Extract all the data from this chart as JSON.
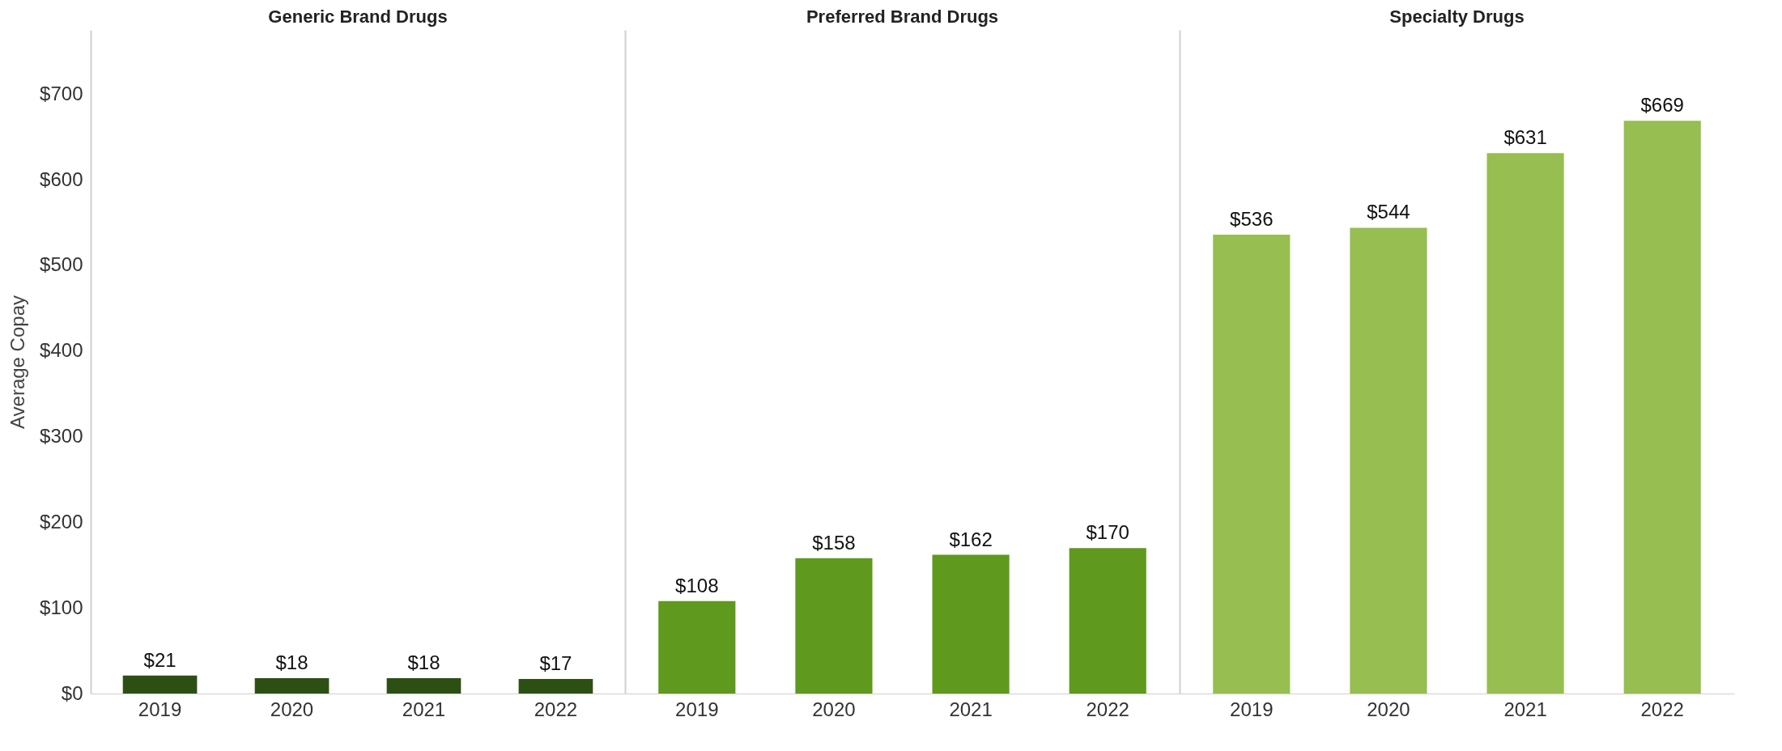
{
  "chart_data": [
    {
      "type": "bar",
      "title": "Generic Brand Drugs",
      "ylabel": "Average Copay",
      "categories": [
        "2019",
        "2020",
        "2021",
        "2022"
      ],
      "values": [
        21,
        18,
        18,
        17
      ],
      "value_labels": [
        "$21",
        "$18",
        "$18",
        "$17"
      ],
      "color": "#2e4f14",
      "ylim": [
        0,
        775
      ],
      "yticks": [
        {
          "value": 0,
          "label": "$0"
        },
        {
          "value": 100,
          "label": "$100"
        },
        {
          "value": 200,
          "label": "$200"
        },
        {
          "value": 300,
          "label": "$300"
        },
        {
          "value": 400,
          "label": "$400"
        },
        {
          "value": 500,
          "label": "$500"
        },
        {
          "value": 600,
          "label": "$600"
        },
        {
          "value": 700,
          "label": "$700"
        }
      ],
      "grid": false
    },
    {
      "type": "bar",
      "title": "Preferred Brand Drugs",
      "categories": [
        "2019",
        "2020",
        "2021",
        "2022"
      ],
      "values": [
        108,
        158,
        162,
        170
      ],
      "value_labels": [
        "$108",
        "$158",
        "$162",
        "$170"
      ],
      "color": "#5f991e",
      "ylim": [
        0,
        775
      ],
      "tick_labels": "x",
      "grid": false
    },
    {
      "type": "bar",
      "title": "Specialty Drugs",
      "categories": [
        "2019",
        "2020",
        "2021",
        "2022"
      ],
      "values": [
        536,
        544,
        631,
        669
      ],
      "value_labels": [
        "$536",
        "$544",
        "$631",
        "$669"
      ],
      "color": "#96be50",
      "ylim": [
        0,
        775
      ],
      "tick_labels": "x",
      "grid": false
    }
  ]
}
